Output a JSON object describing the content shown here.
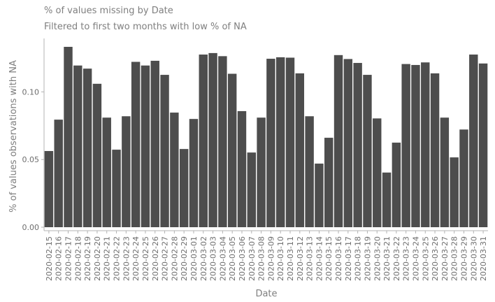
{
  "chart_data": {
    "type": "bar",
    "title": "% of values missing by Date",
    "subtitle": "Filtered to first two months with low % of NA",
    "xlabel": "Date",
    "ylabel": "% of values observations with NA",
    "ylim": [
      0,
      0.1395
    ],
    "y_ticks": [
      "0.00",
      "0.05",
      "0.10"
    ],
    "y_tick_values": [
      0,
      0.05,
      0.1
    ],
    "grid": false,
    "bar_color": "#4d4d4d",
    "axis_color": "#b3b3b3",
    "text_color": "#7f7f7f",
    "categories": [
      "2020-02-15",
      "2020-02-16",
      "2020-02-17",
      "2020-02-18",
      "2020-02-19",
      "2020-02-20",
      "2020-02-21",
      "2020-02-22",
      "2020-02-23",
      "2020-02-24",
      "2020-02-25",
      "2020-02-26",
      "2020-02-27",
      "2020-02-28",
      "2020-02-29",
      "2020-03-01",
      "2020-03-02",
      "2020-03-03",
      "2020-03-04",
      "2020-03-05",
      "2020-03-06",
      "2020-03-07",
      "2020-03-08",
      "2020-03-09",
      "2020-03-10",
      "2020-03-11",
      "2020-03-12",
      "2020-03-13",
      "2020-03-14",
      "2020-03-15",
      "2020-03-16",
      "2020-03-17",
      "2020-03-18",
      "2020-03-19",
      "2020-03-20",
      "2020-03-21",
      "2020-03-22",
      "2020-03-23",
      "2020-03-24",
      "2020-03-25",
      "2020-03-26",
      "2020-03-27",
      "2020-03-28",
      "2020-03-29",
      "2020-03-30",
      "2020-03-31"
    ],
    "tick_labels": [
      "2020-02-15",
      "2020-02-16",
      "2020-02-17",
      "2020-02-18",
      "2020-02-19",
      "2020-02-20",
      "2020-02-21",
      "2020-02-22",
      "2020-02-23",
      "2020-02-24",
      "2020-02-25",
      "2020-02-26",
      "2020-02-27",
      "2020-02-28",
      "2020-02-29",
      "2020-03-01",
      "2020-03-02",
      "2020-03-03",
      "2020-03-04",
      "2020-03-05",
      "2020-03-06",
      "2020-03-07",
      "2020-03-08",
      "2020-03-09",
      "2020-03-10",
      "2020-03-11",
      "2020-03-12",
      "2020-03-13",
      "2020-03-14",
      "2020-03-15",
      "2020-03-16",
      "2020-03-17",
      "2020-03-18",
      "2020-03-19",
      "2020-03-20",
      "2020-03-21",
      "2020-03-22",
      "2020-03-23",
      "2020-03-24",
      "2020-03-25",
      "2020-03-26",
      "2020-03-27",
      "2020-03-28",
      "2020-03-29",
      "2020-03-30",
      "2020-03-31"
    ],
    "values": [
      0.0563,
      0.0795,
      0.1333,
      0.1195,
      0.1172,
      0.106,
      0.081,
      0.0573,
      0.082,
      0.1222,
      0.1195,
      0.123,
      0.1126,
      0.0847,
      0.0578,
      0.08,
      0.1276,
      0.1287,
      0.1264,
      0.1134,
      0.0858,
      0.0552,
      0.081,
      0.1245,
      0.1256,
      0.1253,
      0.1137,
      0.082,
      0.047,
      0.0661,
      0.1272,
      0.1243,
      0.1214,
      0.1126,
      0.0804,
      0.0404,
      0.0625,
      0.1206,
      0.1199,
      0.1218,
      0.1137,
      0.081,
      0.0516,
      0.0722,
      0.1276,
      0.121
    ]
  }
}
